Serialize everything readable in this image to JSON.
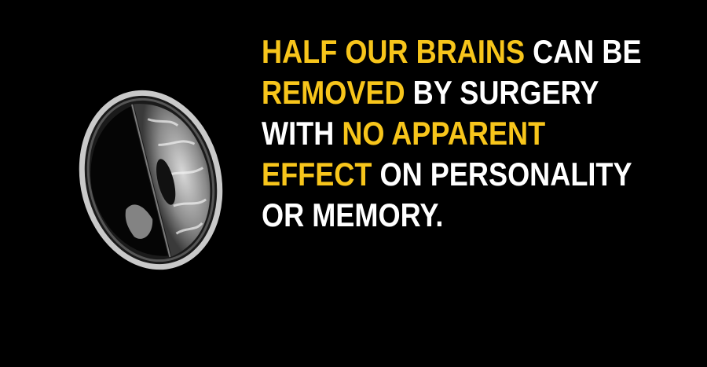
{
  "colors": {
    "background": "#000000",
    "text": "#ffffff",
    "highlight": "#f7c51b"
  },
  "image": {
    "icon": "brain-mri-scan-icon"
  },
  "fact": {
    "line1": {
      "highlight": "HALF OUR BRAINS",
      "rest": " CAN BE"
    },
    "line2": {
      "highlight": "REMOVED",
      "rest": " BY SURGERY"
    },
    "line3": {
      "lead": "WITH ",
      "highlight": "NO APPARENT"
    },
    "line4": {
      "highlight": "EFFECT",
      "rest": " ON PERSONALITY"
    },
    "line5": {
      "rest": "OR MEMORY."
    }
  }
}
